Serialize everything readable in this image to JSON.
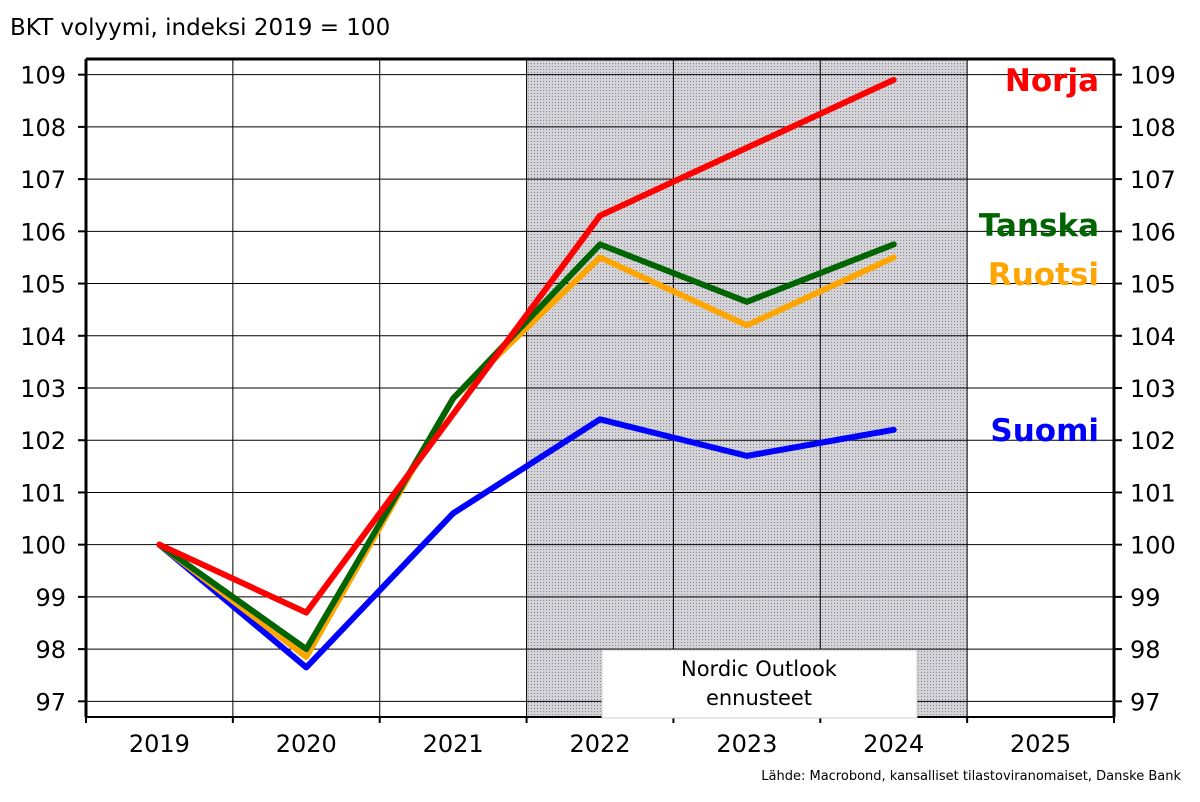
{
  "chart_data": {
    "type": "line",
    "title": "BKT volyymi, indeksi 2019 = 100",
    "x": [
      "2019",
      "2020",
      "2021",
      "2022",
      "2023",
      "2024",
      "2025"
    ],
    "ylim": [
      96.7,
      109.3
    ],
    "yticks": [
      97,
      98,
      99,
      100,
      101,
      102,
      103,
      104,
      105,
      106,
      107,
      108,
      109
    ],
    "grid": true,
    "forecast_region": {
      "from": "2021.5",
      "to": "2024.5",
      "label_line1": "Nordic Outlook",
      "label_line2": "ennusteet"
    },
    "series": [
      {
        "name": "Norja",
        "color": "#ff0000",
        "x": [
          "2019",
          "2020",
          "2021",
          "2022",
          "2023",
          "2024"
        ],
        "values": [
          100.0,
          98.7,
          102.5,
          106.3,
          107.6,
          108.9
        ]
      },
      {
        "name": "Tanska",
        "color": "#006400",
        "x": [
          "2019",
          "2020",
          "2021",
          "2022",
          "2023",
          "2024"
        ],
        "values": [
          100.0,
          98.0,
          102.8,
          105.75,
          104.65,
          105.75
        ]
      },
      {
        "name": "Ruotsi",
        "color": "#ffa500",
        "x": [
          "2019",
          "2020",
          "2021",
          "2022",
          "2023",
          "2024"
        ],
        "values": [
          100.0,
          97.85,
          102.8,
          105.5,
          104.2,
          105.5
        ]
      },
      {
        "name": "Suomi",
        "color": "#0000ff",
        "x": [
          "2019",
          "2020",
          "2021",
          "2022",
          "2023",
          "2024"
        ],
        "values": [
          100.0,
          97.65,
          100.6,
          102.4,
          101.7,
          102.2
        ]
      }
    ],
    "source": "Lähde: Macrobond, kansalliset tilastoviranomaiset, Danske Bank"
  }
}
